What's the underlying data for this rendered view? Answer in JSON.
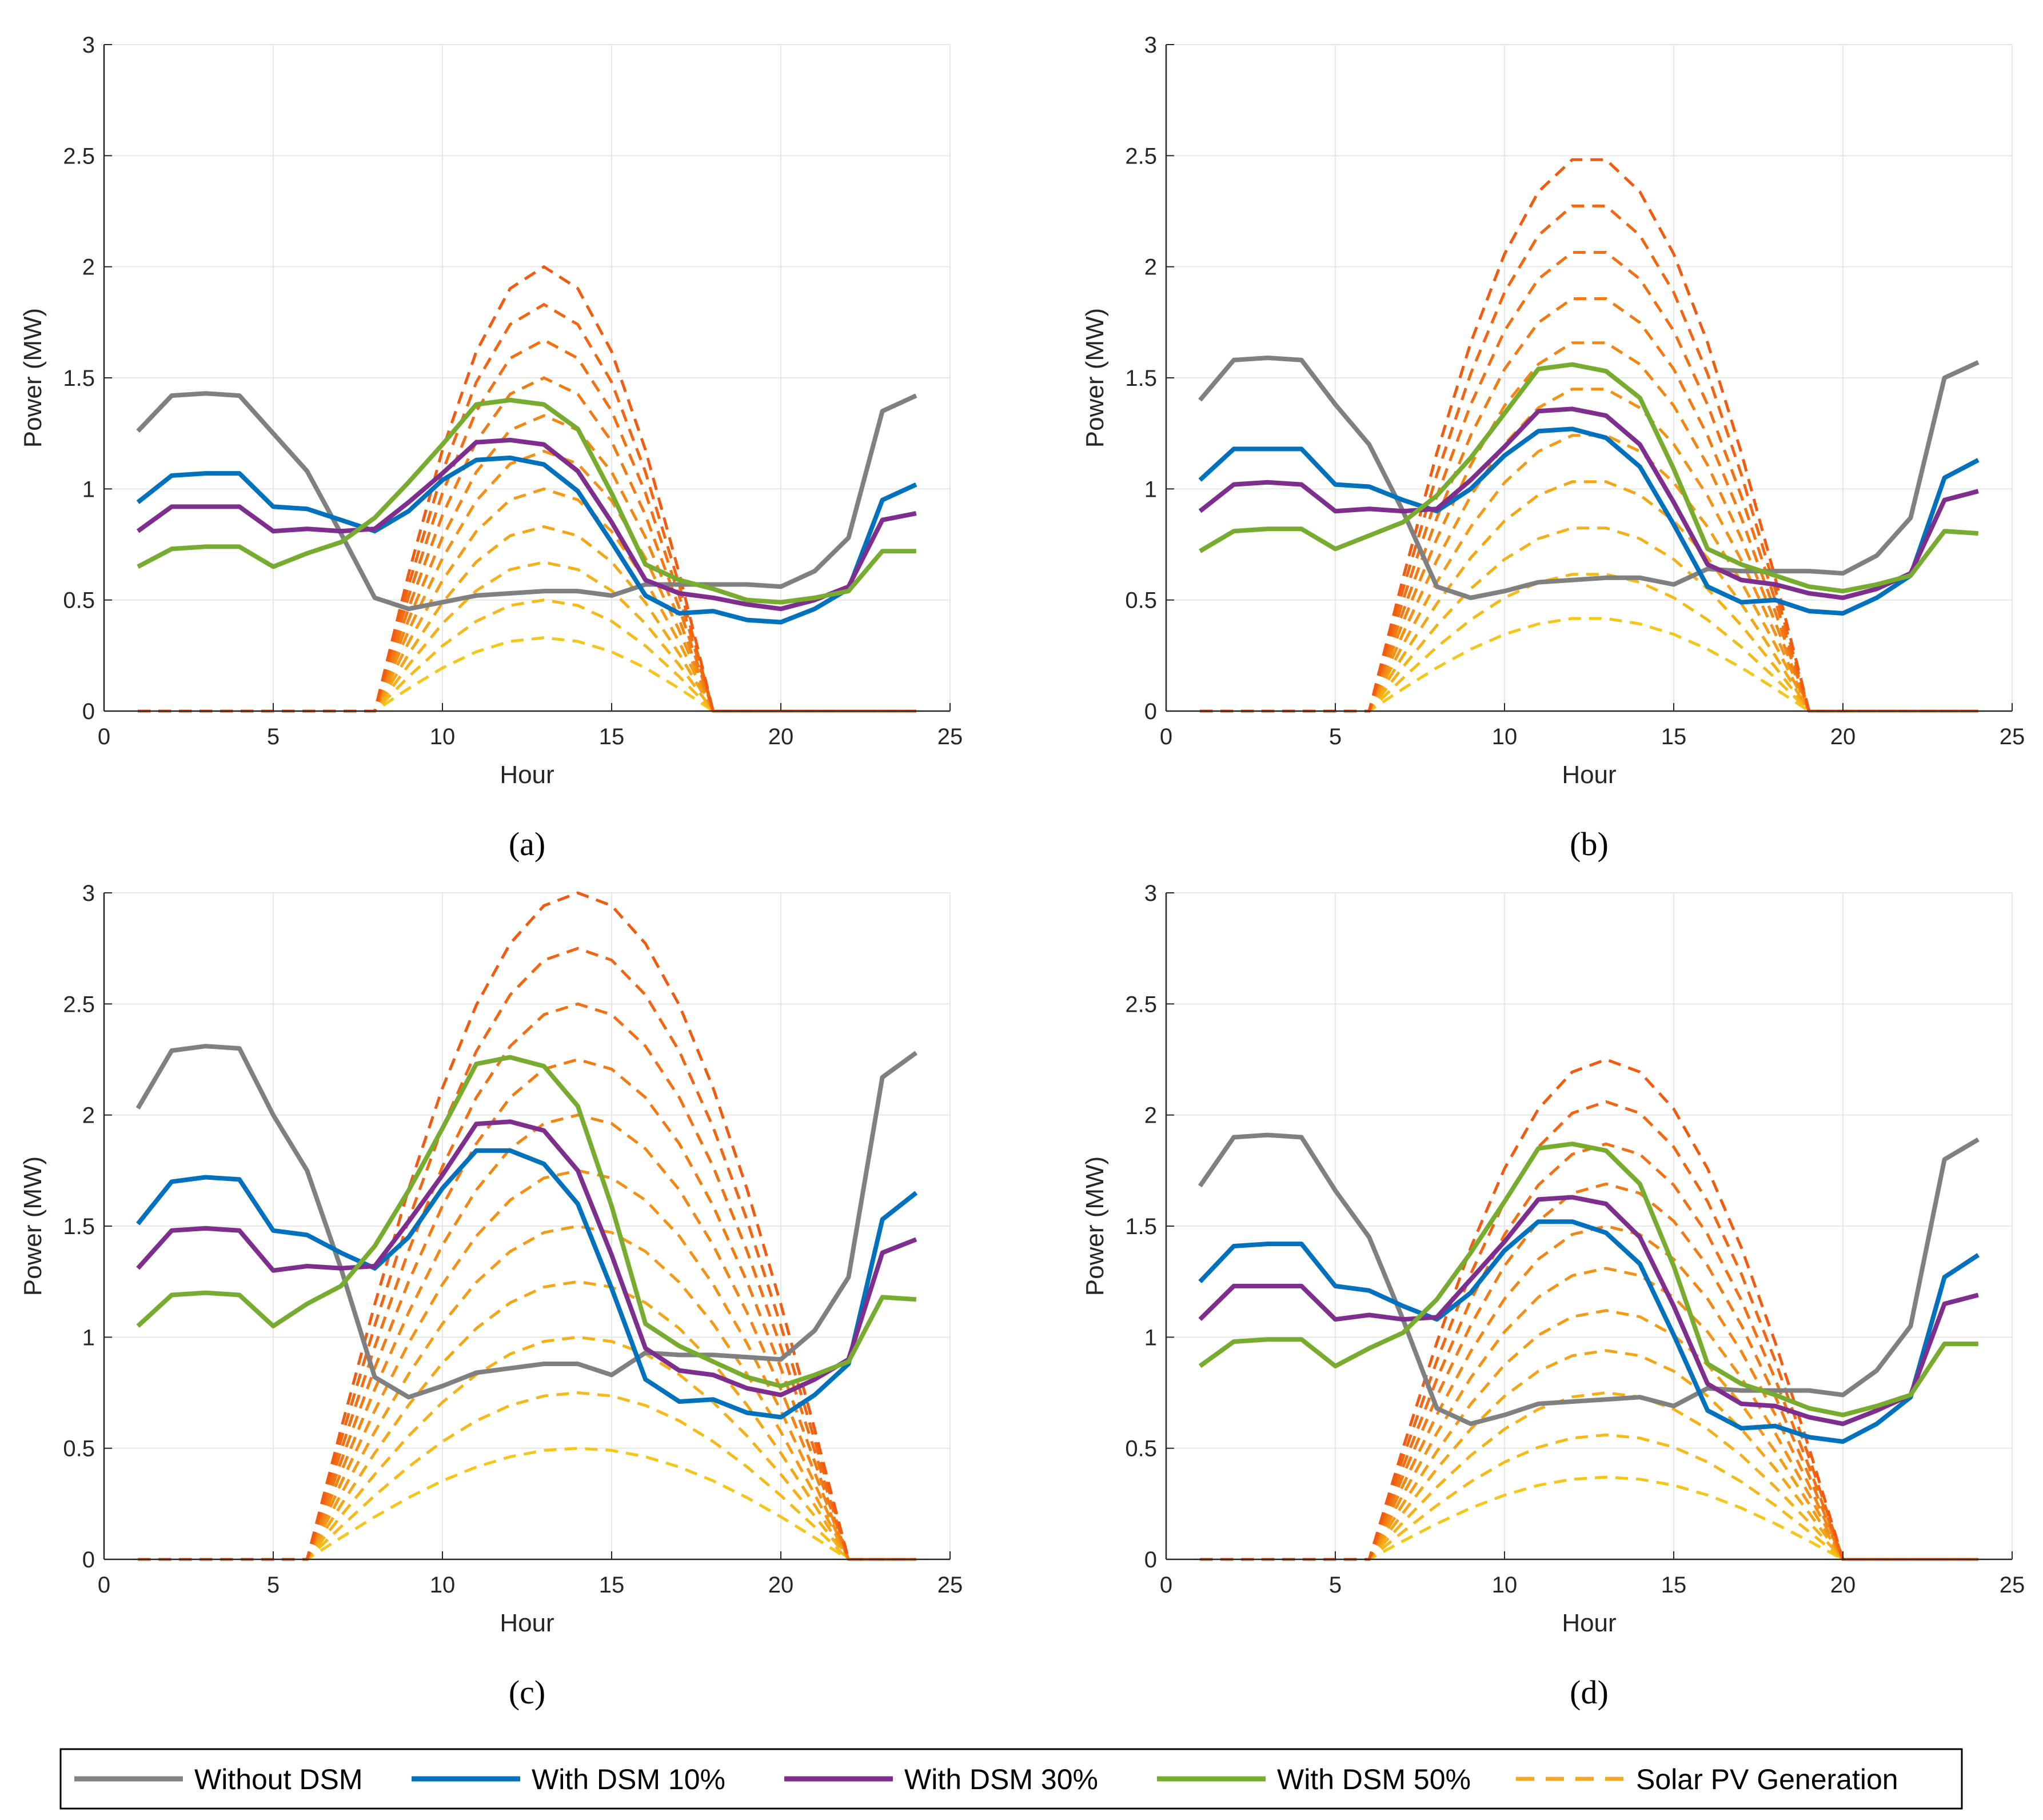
{
  "legend": {
    "items": [
      {
        "label": "Without DSM",
        "color": "#808080",
        "style": "solid"
      },
      {
        "label": "With DSM 10%",
        "color": "#0072BD",
        "style": "solid"
      },
      {
        "label": "With DSM 30%",
        "color": "#7E2F8E",
        "style": "solid"
      },
      {
        "label": "With DSM 50%",
        "color": "#77AC30",
        "style": "solid"
      },
      {
        "label": "Solar PV Generation",
        "color": "#F5A623",
        "style": "dashed"
      }
    ]
  },
  "chart_data": [
    {
      "type": "line",
      "panel": "(a)",
      "xlabel": "Hour",
      "ylabel": "Power (MW)",
      "xlim": [
        0,
        25
      ],
      "ylim": [
        0,
        3
      ],
      "x_ticks": [
        "0",
        "5",
        "10",
        "15",
        "20",
        "25"
      ],
      "y_ticks": [
        "0",
        "0.5",
        "1",
        "1.5",
        "2",
        "2.5",
        "3"
      ],
      "grid": true,
      "x": [
        1,
        2,
        3,
        4,
        5,
        6,
        7,
        8,
        9,
        10,
        11,
        12,
        13,
        14,
        15,
        16,
        17,
        18,
        19,
        20,
        21,
        22,
        23,
        24
      ],
      "series": [
        {
          "name": "Without DSM",
          "color": "#808080",
          "values": [
            1.26,
            1.42,
            1.43,
            1.42,
            1.25,
            1.08,
            0.8,
            0.51,
            0.46,
            0.49,
            0.52,
            0.53,
            0.54,
            0.54,
            0.52,
            0.57,
            0.57,
            0.57,
            0.57,
            0.56,
            0.63,
            0.78,
            1.35,
            1.42
          ]
        },
        {
          "name": "With DSM 10%",
          "color": "#0072BD",
          "values": [
            0.94,
            1.06,
            1.07,
            1.07,
            0.92,
            0.91,
            0.86,
            0.81,
            0.9,
            1.04,
            1.13,
            1.14,
            1.11,
            0.99,
            0.76,
            0.52,
            0.44,
            0.45,
            0.41,
            0.4,
            0.46,
            0.55,
            0.95,
            1.02
          ]
        },
        {
          "name": "With DSM 30%",
          "color": "#7E2F8E",
          "values": [
            0.81,
            0.92,
            0.92,
            0.92,
            0.81,
            0.82,
            0.81,
            0.82,
            0.94,
            1.07,
            1.21,
            1.22,
            1.2,
            1.08,
            0.85,
            0.59,
            0.53,
            0.51,
            0.48,
            0.46,
            0.5,
            0.56,
            0.86,
            0.89
          ]
        },
        {
          "name": "With DSM 50%",
          "color": "#77AC30",
          "values": [
            0.65,
            0.73,
            0.74,
            0.74,
            0.65,
            0.71,
            0.76,
            0.87,
            1.03,
            1.2,
            1.38,
            1.4,
            1.38,
            1.27,
            0.98,
            0.66,
            0.59,
            0.55,
            0.5,
            0.49,
            0.51,
            0.54,
            0.72,
            0.72
          ]
        }
      ],
      "pv": {
        "sunrise": 8,
        "sunset": 18,
        "peaks": [
          0.33,
          0.5,
          0.67,
          0.83,
          1.0,
          1.17,
          1.33,
          1.5,
          1.67,
          1.83,
          2.0
        ]
      }
    },
    {
      "type": "line",
      "panel": "(b)",
      "xlabel": "Hour",
      "ylabel": "Power (MW)",
      "xlim": [
        0,
        25
      ],
      "ylim": [
        0,
        3
      ],
      "x_ticks": [
        "0",
        "5",
        "10",
        "15",
        "20",
        "25"
      ],
      "y_ticks": [
        "0",
        "0.5",
        "1",
        "1.5",
        "2",
        "2.5",
        "3"
      ],
      "grid": true,
      "x": [
        1,
        2,
        3,
        4,
        5,
        6,
        7,
        8,
        9,
        10,
        11,
        12,
        13,
        14,
        15,
        16,
        17,
        18,
        19,
        20,
        21,
        22,
        23,
        24
      ],
      "series": [
        {
          "name": "Without DSM",
          "color": "#808080",
          "values": [
            1.4,
            1.58,
            1.59,
            1.58,
            1.38,
            1.2,
            0.9,
            0.56,
            0.51,
            0.54,
            0.58,
            0.59,
            0.6,
            0.6,
            0.57,
            0.64,
            0.63,
            0.63,
            0.63,
            0.62,
            0.7,
            0.87,
            1.5,
            1.57
          ]
        },
        {
          "name": "With DSM 10%",
          "color": "#0072BD",
          "values": [
            1.04,
            1.18,
            1.18,
            1.18,
            1.02,
            1.01,
            0.95,
            0.9,
            1.0,
            1.15,
            1.26,
            1.27,
            1.23,
            1.1,
            0.84,
            0.56,
            0.49,
            0.5,
            0.45,
            0.44,
            0.51,
            0.61,
            1.05,
            1.13
          ]
        },
        {
          "name": "With DSM 30%",
          "color": "#7E2F8E",
          "values": [
            0.9,
            1.02,
            1.03,
            1.02,
            0.9,
            0.91,
            0.9,
            0.91,
            1.04,
            1.19,
            1.35,
            1.36,
            1.33,
            1.2,
            0.94,
            0.66,
            0.59,
            0.57,
            0.53,
            0.51,
            0.55,
            0.62,
            0.95,
            0.99
          ]
        },
        {
          "name": "With DSM 50%",
          "color": "#77AC30",
          "values": [
            0.72,
            0.81,
            0.82,
            0.82,
            0.73,
            0.79,
            0.85,
            0.97,
            1.14,
            1.34,
            1.54,
            1.56,
            1.53,
            1.41,
            1.09,
            0.73,
            0.66,
            0.61,
            0.56,
            0.54,
            0.57,
            0.61,
            0.81,
            0.8
          ]
        }
      ],
      "pv": {
        "sunrise": 6,
        "sunset": 19,
        "peaks": [
          0.42,
          0.62,
          0.83,
          1.04,
          1.25,
          1.46,
          1.67,
          1.87,
          2.08,
          2.29,
          2.5
        ]
      }
    },
    {
      "type": "line",
      "panel": "(c)",
      "xlabel": "Hour",
      "ylabel": "Power (MW)",
      "xlim": [
        0,
        25
      ],
      "ylim": [
        0,
        3
      ],
      "x_ticks": [
        "0",
        "5",
        "10",
        "15",
        "20",
        "25"
      ],
      "y_ticks": [
        "0",
        "0.5",
        "1",
        "1.5",
        "2",
        "2.5",
        "3"
      ],
      "grid": true,
      "x": [
        1,
        2,
        3,
        4,
        5,
        6,
        7,
        8,
        9,
        10,
        11,
        12,
        13,
        14,
        15,
        16,
        17,
        18,
        19,
        20,
        21,
        22,
        23,
        24
      ],
      "series": [
        {
          "name": "Without DSM",
          "color": "#808080",
          "values": [
            2.03,
            2.29,
            2.31,
            2.3,
            2.0,
            1.75,
            1.31,
            0.82,
            0.73,
            0.78,
            0.84,
            0.86,
            0.88,
            0.88,
            0.83,
            0.93,
            0.92,
            0.92,
            0.91,
            0.9,
            1.03,
            1.27,
            2.17,
            2.28
          ]
        },
        {
          "name": "With DSM 10%",
          "color": "#0072BD",
          "values": [
            1.51,
            1.7,
            1.72,
            1.71,
            1.48,
            1.46,
            1.38,
            1.31,
            1.45,
            1.67,
            1.84,
            1.84,
            1.78,
            1.6,
            1.22,
            0.81,
            0.71,
            0.72,
            0.66,
            0.64,
            0.74,
            0.88,
            1.53,
            1.65
          ]
        },
        {
          "name": "With DSM 30%",
          "color": "#7E2F8E",
          "values": [
            1.31,
            1.48,
            1.49,
            1.48,
            1.3,
            1.32,
            1.31,
            1.32,
            1.52,
            1.73,
            1.96,
            1.97,
            1.93,
            1.75,
            1.37,
            0.95,
            0.85,
            0.83,
            0.77,
            0.74,
            0.81,
            0.9,
            1.38,
            1.44
          ]
        },
        {
          "name": "With DSM 50%",
          "color": "#77AC30",
          "values": [
            1.05,
            1.19,
            1.2,
            1.19,
            1.05,
            1.15,
            1.23,
            1.41,
            1.66,
            1.94,
            2.23,
            2.26,
            2.22,
            2.04,
            1.59,
            1.06,
            0.96,
            0.89,
            0.82,
            0.78,
            0.83,
            0.89,
            1.18,
            1.17
          ]
        }
      ],
      "pv": {
        "sunrise": 6,
        "sunset": 22,
        "peaks": [
          0.5,
          0.75,
          1.0,
          1.25,
          1.5,
          1.75,
          2.0,
          2.25,
          2.5,
          2.75,
          3.0
        ]
      }
    },
    {
      "type": "line",
      "panel": "(d)",
      "xlabel": "Hour",
      "ylabel": "Power (MW)",
      "xlim": [
        0,
        25
      ],
      "ylim": [
        0,
        3
      ],
      "x_ticks": [
        "0",
        "5",
        "10",
        "15",
        "20",
        "25"
      ],
      "y_ticks": [
        "0",
        "0.5",
        "1",
        "1.5",
        "2",
        "2.5",
        "3"
      ],
      "grid": true,
      "x": [
        1,
        2,
        3,
        4,
        5,
        6,
        7,
        8,
        9,
        10,
        11,
        12,
        13,
        14,
        15,
        16,
        17,
        18,
        19,
        20,
        21,
        22,
        23,
        24
      ],
      "series": [
        {
          "name": "Without DSM",
          "color": "#808080",
          "values": [
            1.68,
            1.9,
            1.91,
            1.9,
            1.66,
            1.45,
            1.08,
            0.68,
            0.61,
            0.65,
            0.7,
            0.71,
            0.72,
            0.73,
            0.69,
            0.77,
            0.76,
            0.76,
            0.76,
            0.74,
            0.85,
            1.05,
            1.8,
            1.89
          ]
        },
        {
          "name": "With DSM 10%",
          "color": "#0072BD",
          "values": [
            1.25,
            1.41,
            1.42,
            1.42,
            1.23,
            1.21,
            1.14,
            1.08,
            1.2,
            1.39,
            1.52,
            1.52,
            1.47,
            1.33,
            1.01,
            0.67,
            0.59,
            0.6,
            0.55,
            0.53,
            0.61,
            0.73,
            1.27,
            1.37
          ]
        },
        {
          "name": "With DSM 30%",
          "color": "#7E2F8E",
          "values": [
            1.08,
            1.23,
            1.23,
            1.23,
            1.08,
            1.1,
            1.08,
            1.09,
            1.26,
            1.43,
            1.62,
            1.63,
            1.6,
            1.45,
            1.14,
            0.79,
            0.7,
            0.69,
            0.64,
            0.61,
            0.67,
            0.74,
            1.15,
            1.19
          ]
        },
        {
          "name": "With DSM 50%",
          "color": "#77AC30",
          "values": [
            0.87,
            0.98,
            0.99,
            0.99,
            0.87,
            0.95,
            1.02,
            1.17,
            1.38,
            1.61,
            1.85,
            1.87,
            1.84,
            1.69,
            1.32,
            0.88,
            0.79,
            0.74,
            0.68,
            0.65,
            0.69,
            0.74,
            0.97,
            0.97
          ]
        }
      ],
      "pv": {
        "sunrise": 6,
        "sunset": 20,
        "peaks": [
          0.37,
          0.56,
          0.75,
          0.94,
          1.12,
          1.31,
          1.5,
          1.69,
          1.87,
          2.06,
          2.25
        ]
      }
    }
  ]
}
